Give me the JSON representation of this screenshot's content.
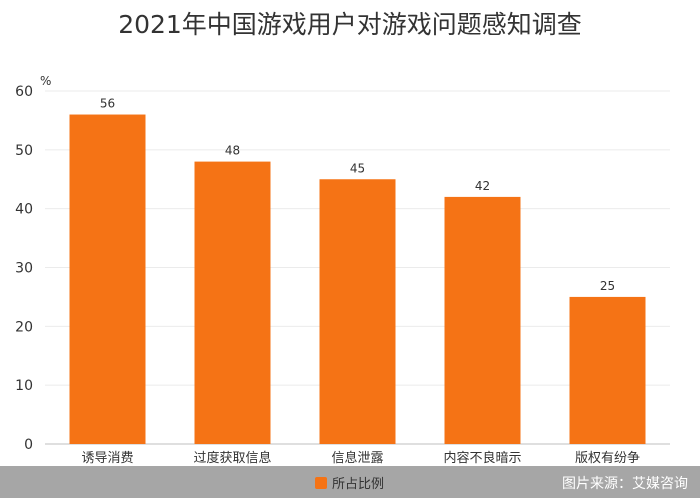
{
  "chart_data": {
    "type": "bar",
    "title": "2021年中国游戏用户对游戏问题感知调查",
    "unit": "%",
    "categories": [
      "诱导消费",
      "过度获取信息",
      "信息泄露",
      "内容不良暗示",
      "版权有纷争"
    ],
    "series": [
      {
        "name": "所占比例",
        "values": [
          56,
          48,
          45,
          42,
          25
        ]
      }
    ],
    "ylim": [
      0,
      60
    ],
    "yticks": [
      0,
      10,
      20,
      30,
      40,
      50,
      60
    ],
    "grid": true,
    "legend_position": "bottom",
    "bar_color": "#f57315"
  },
  "source": "图片来源：艾媒咨询"
}
